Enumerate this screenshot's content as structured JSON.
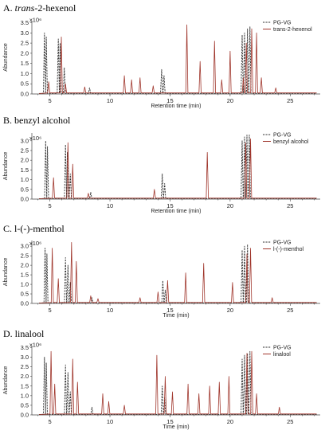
{
  "chart_data": [
    {
      "type": "line",
      "panel_letter": "A.",
      "title_italic": "trans",
      "title_rest": "-2-hexenol",
      "ylabel": "Abundance",
      "xlabel": "Retention time (min)",
      "xlim": [
        3.5,
        27.5
      ],
      "ylim": [
        0,
        3.6
      ],
      "x_ticks": [
        5,
        10,
        15,
        20,
        25
      ],
      "y_ticks": [
        "0.0",
        "0.5",
        "1.0",
        "1.5",
        "2.0",
        "2.5",
        "3.0",
        "3.5"
      ],
      "y_top_label": "x10⁶",
      "legend": [
        "PG-VG",
        "trans-2-hexenol"
      ],
      "series": [
        {
          "name": "PG-VG",
          "color": "#333333",
          "peaks": [
            [
              4.55,
              3.0
            ],
            [
              4.7,
              2.8
            ],
            [
              5.7,
              2.7
            ],
            [
              5.85,
              2.5
            ],
            [
              6.2,
              1.3
            ],
            [
              8.3,
              0.3
            ],
            [
              14.3,
              1.2
            ],
            [
              14.5,
              0.9
            ],
            [
              21.0,
              2.9
            ],
            [
              21.2,
              3.0
            ],
            [
              21.45,
              3.2
            ],
            [
              21.65,
              3.3
            ]
          ]
        },
        {
          "name": "trans-2-hexenol",
          "color": "#a0362c",
          "peaks": [
            [
              4.9,
              0.6
            ],
            [
              5.95,
              2.8
            ],
            [
              6.3,
              0.5
            ],
            [
              7.9,
              0.35
            ],
            [
              11.2,
              0.9
            ],
            [
              11.8,
              0.7
            ],
            [
              12.5,
              0.8
            ],
            [
              13.6,
              0.4
            ],
            [
              16.4,
              3.4
            ],
            [
              17.5,
              1.6
            ],
            [
              18.7,
              2.6
            ],
            [
              19.3,
              0.7
            ],
            [
              20.0,
              2.1
            ],
            [
              21.1,
              0.8
            ],
            [
              21.35,
              2.5
            ],
            [
              21.8,
              3.2
            ],
            [
              22.2,
              3.0
            ],
            [
              22.6,
              0.8
            ],
            [
              23.8,
              0.3
            ]
          ]
        }
      ]
    },
    {
      "type": "line",
      "panel_letter": "B.",
      "title_italic": "",
      "title_rest": "benzyl alcohol",
      "ylabel": "Abundance",
      "xlabel": "Retention time (min)",
      "xlim": [
        3.5,
        27.5
      ],
      "ylim": [
        0,
        3.4
      ],
      "x_ticks": [
        5,
        10,
        15,
        20,
        25
      ],
      "y_ticks": [
        "0.0",
        "0.5",
        "1.0",
        "1.5",
        "2.0",
        "2.5",
        "3.0"
      ],
      "y_top_label": "x10⁶",
      "legend": [
        "PG-VG",
        "benzyl alcohol"
      ],
      "series": [
        {
          "name": "PG-VG",
          "color": "#333333",
          "peaks": [
            [
              4.65,
              3.0
            ],
            [
              4.8,
              2.7
            ],
            [
              6.3,
              2.8
            ],
            [
              6.45,
              2.4
            ],
            [
              6.7,
              1.3
            ],
            [
              8.4,
              0.35
            ],
            [
              14.35,
              1.3
            ],
            [
              14.55,
              0.8
            ],
            [
              21.0,
              3.0
            ],
            [
              21.2,
              3.2
            ],
            [
              21.4,
              3.3
            ],
            [
              21.6,
              3.3
            ]
          ]
        },
        {
          "name": "benzyl alcohol",
          "color": "#a0362c",
          "peaks": [
            [
              5.3,
              1.1
            ],
            [
              6.5,
              2.9
            ],
            [
              6.9,
              1.8
            ],
            [
              8.2,
              0.3
            ],
            [
              13.7,
              0.5
            ],
            [
              18.1,
              2.4
            ],
            [
              21.3,
              2.9
            ],
            [
              21.7,
              3.1
            ]
          ]
        }
      ]
    },
    {
      "type": "line",
      "panel_letter": "C.",
      "title_italic": "",
      "title_rest": "l-(-)-menthol",
      "ylabel": "Abundance",
      "xlabel": "Time (min)",
      "xlim": [
        3.5,
        27.5
      ],
      "ylim": [
        0,
        3.3
      ],
      "x_ticks": [
        5,
        10,
        15,
        20,
        25
      ],
      "y_ticks": [
        "0.0",
        "0.5",
        "1.0",
        "1.5",
        "2.0",
        "2.5",
        "3.0"
      ],
      "y_top_label": "x10⁶",
      "legend": [
        "PG-VG",
        "l-(-)-menthol"
      ],
      "series": [
        {
          "name": "PG-VG",
          "color": "#333333",
          "peaks": [
            [
              4.6,
              2.9
            ],
            [
              4.75,
              2.6
            ],
            [
              6.3,
              2.4
            ],
            [
              6.5,
              2.0
            ],
            [
              6.7,
              1.1
            ],
            [
              8.5,
              0.3
            ],
            [
              14.4,
              1.2
            ],
            [
              14.6,
              0.7
            ],
            [
              21.0,
              2.8
            ],
            [
              21.2,
              3.0
            ],
            [
              21.45,
              3.1
            ]
          ]
        },
        {
          "name": "l-(-)-menthol",
          "color": "#a0362c",
          "peaks": [
            [
              5.2,
              2.9
            ],
            [
              5.7,
              1.3
            ],
            [
              6.8,
              3.2
            ],
            [
              7.2,
              2.2
            ],
            [
              8.4,
              0.4
            ],
            [
              9.0,
              0.25
            ],
            [
              12.5,
              0.3
            ],
            [
              14.0,
              0.6
            ],
            [
              14.8,
              1.2
            ],
            [
              16.3,
              1.6
            ],
            [
              17.8,
              2.1
            ],
            [
              20.2,
              1.1
            ],
            [
              21.4,
              2.6
            ],
            [
              21.7,
              2.9
            ],
            [
              23.5,
              0.3
            ]
          ]
        }
      ]
    },
    {
      "type": "line",
      "panel_letter": "D.",
      "title_italic": "",
      "title_rest": "linalool",
      "ylabel": "Abundance",
      "xlabel": "Time (min)",
      "xlim": [
        3.5,
        27.5
      ],
      "ylim": [
        0,
        3.6
      ],
      "x_ticks": [
        5,
        10,
        15,
        20,
        25
      ],
      "y_ticks": [
        "0.0",
        "0.5",
        "1.0",
        "1.5",
        "2.0",
        "2.5",
        "3.0",
        "3.5"
      ],
      "y_top_label": "x10⁶",
      "legend": [
        "PG-VG",
        "linalool"
      ],
      "series": [
        {
          "name": "PG-VG",
          "color": "#333333",
          "peaks": [
            [
              4.55,
              3.0
            ],
            [
              4.7,
              2.7
            ],
            [
              6.3,
              2.6
            ],
            [
              6.5,
              2.2
            ],
            [
              6.7,
              1.2
            ],
            [
              8.5,
              0.4
            ],
            [
              14.35,
              1.5
            ],
            [
              14.55,
              0.9
            ],
            [
              21.0,
              2.9
            ],
            [
              21.2,
              3.1
            ],
            [
              21.45,
              3.2
            ],
            [
              21.65,
              3.3
            ]
          ]
        },
        {
          "name": "linalool",
          "color": "#a0362c",
          "peaks": [
            [
              5.1,
              3.3
            ],
            [
              5.4,
              1.6
            ],
            [
              6.9,
              2.9
            ],
            [
              7.3,
              1.7
            ],
            [
              9.4,
              1.1
            ],
            [
              9.9,
              0.7
            ],
            [
              11.2,
              0.5
            ],
            [
              13.9,
              3.1
            ],
            [
              14.6,
              2.0
            ],
            [
              15.2,
              1.2
            ],
            [
              16.5,
              1.6
            ],
            [
              17.4,
              1.1
            ],
            [
              18.3,
              1.5
            ],
            [
              19.1,
              1.7
            ],
            [
              19.9,
              2.0
            ],
            [
              21.4,
              3.2
            ],
            [
              21.8,
              3.3
            ],
            [
              22.2,
              1.1
            ],
            [
              24.1,
              0.4
            ]
          ]
        }
      ]
    }
  ]
}
